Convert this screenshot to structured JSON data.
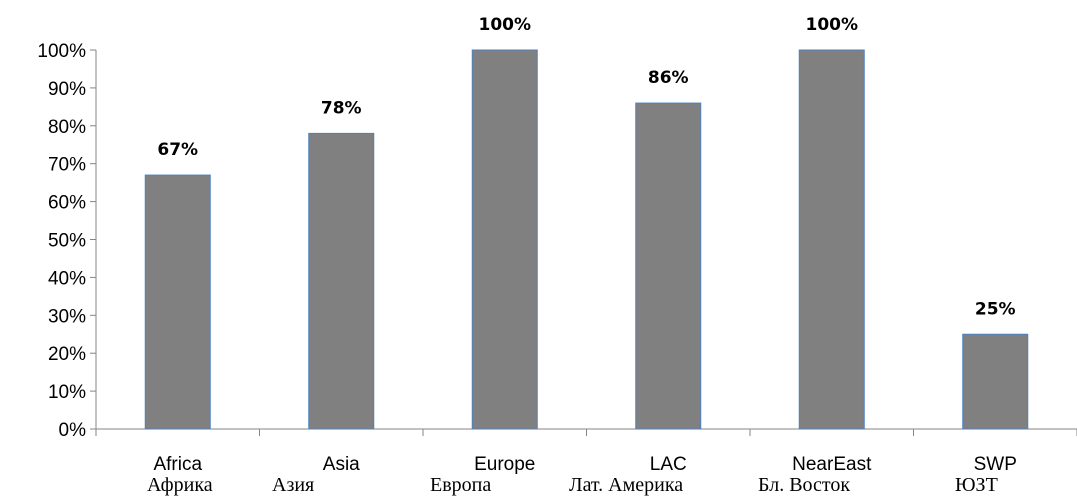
{
  "chart_data": {
    "type": "bar",
    "categories": [
      "Africa",
      "Asia",
      "Europe",
      "LAC",
      "NearEast",
      "SWP"
    ],
    "categories_ru": [
      "Африка",
      "Азия",
      "Европа",
      "Лат. Америка",
      "Бл. Восток",
      "ЮЗТ"
    ],
    "values": [
      67,
      78,
      100,
      86,
      100,
      25
    ],
    "data_labels": [
      "67%",
      "78%",
      "100%",
      "86%",
      "100%",
      "25%"
    ],
    "ylim": [
      0,
      100
    ],
    "yticks": [
      "0%",
      "10%",
      "20%",
      "30%",
      "40%",
      "50%",
      "60%",
      "70%",
      "80%",
      "90%",
      "100%"
    ],
    "bar_color": "#808080",
    "bar_edge_color": "#4f81bd",
    "axis_color": "#868686",
    "grid": false,
    "legend": "none"
  }
}
